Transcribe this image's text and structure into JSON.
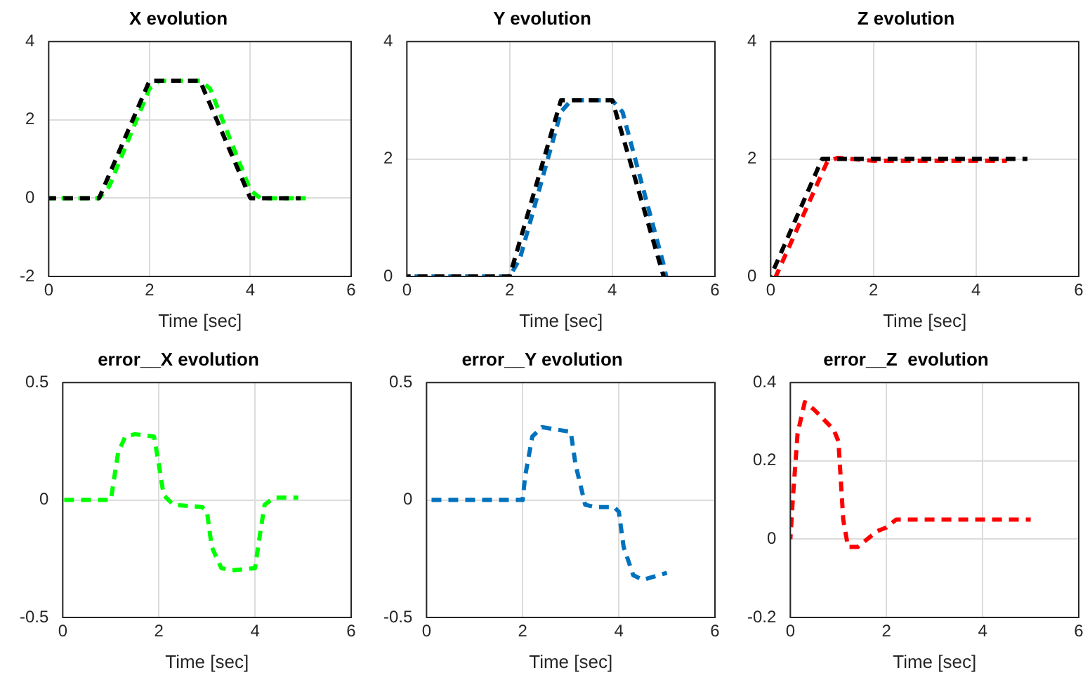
{
  "chart_data": [
    {
      "type": "line",
      "title": "X evolution",
      "xlabel": "Time [sec]",
      "xlim": [
        0,
        6
      ],
      "xticks": [
        0,
        2,
        4,
        6
      ],
      "ylim": [
        -2,
        4
      ],
      "yticks": [
        -2,
        0,
        2,
        4
      ],
      "grid": true,
      "legend": false,
      "marker": "none",
      "line_style": "dashed",
      "series": [
        {
          "color": "#00ff00",
          "x": [
            0,
            1,
            1.2,
            2,
            2.2,
            3,
            3.2,
            4,
            4.2,
            5.1
          ],
          "values": [
            0,
            0,
            0.3,
            2.8,
            3,
            3,
            2.8,
            0.2,
            0,
            0
          ]
        },
        {
          "color": "#000000",
          "x": [
            0,
            1,
            2,
            3,
            4,
            5
          ],
          "values": [
            0,
            0,
            3,
            3,
            0,
            0
          ]
        }
      ]
    },
    {
      "type": "line",
      "title": "Y evolution",
      "xlabel": "Time [sec]",
      "xlim": [
        0,
        6
      ],
      "xticks": [
        0,
        2,
        4,
        6
      ],
      "ylim": [
        0,
        4
      ],
      "yticks": [
        0,
        2,
        4
      ],
      "grid": true,
      "legend": false,
      "marker": "none",
      "line_style": "dashed",
      "series": [
        {
          "color": "#0072bd",
          "x": [
            0,
            2,
            2.2,
            3,
            3.2,
            4,
            4.2,
            5,
            5.05
          ],
          "values": [
            0,
            0,
            0.3,
            2.8,
            3,
            3,
            2.8,
            0.2,
            0
          ]
        },
        {
          "color": "#000000",
          "x": [
            0,
            2,
            3,
            4,
            5
          ],
          "values": [
            0,
            0,
            3,
            3,
            0
          ]
        }
      ]
    },
    {
      "type": "line",
      "title": "Z evolution",
      "xlabel": "Time [sec]",
      "xlim": [
        0,
        6
      ],
      "xticks": [
        0,
        2,
        4,
        6
      ],
      "ylim": [
        0,
        4
      ],
      "yticks": [
        0,
        2,
        4
      ],
      "grid": true,
      "legend": false,
      "marker": "none",
      "line_style": "dashed",
      "series": [
        {
          "color": "#ff0000",
          "x": [
            0.1,
            1.1,
            1.3,
            2,
            4.6
          ],
          "values": [
            0,
            1.95,
            2.02,
            1.97,
            1.97
          ]
        },
        {
          "color": "#000000",
          "x": [
            0,
            1,
            5
          ],
          "values": [
            0,
            2,
            2
          ]
        }
      ]
    },
    {
      "type": "line",
      "title": "error__X evolution",
      "xlabel": "Time [sec]",
      "xlim": [
        0,
        6
      ],
      "xticks": [
        0,
        2,
        4,
        6
      ],
      "ylim": [
        -0.5,
        0.5
      ],
      "yticks": [
        -0.5,
        0,
        0.5
      ],
      "grid": true,
      "legend": false,
      "marker": "none",
      "line_style": "dashed",
      "series": [
        {
          "color": "#00ff00",
          "x": [
            0,
            1,
            1.15,
            1.3,
            1.5,
            1.9,
            2,
            2.1,
            2.3,
            2.9,
            3,
            3.1,
            3.3,
            3.5,
            4,
            4.1,
            4.2,
            4.4,
            4.9
          ],
          "values": [
            0,
            0,
            0.2,
            0.27,
            0.28,
            0.27,
            0.15,
            0.02,
            -0.02,
            -0.03,
            -0.05,
            -0.2,
            -0.29,
            -0.3,
            -0.29,
            -0.15,
            -0.02,
            0.01,
            0.01
          ]
        }
      ]
    },
    {
      "type": "line",
      "title": "error__Y evolution",
      "xlabel": "Time [sec]",
      "xlim": [
        0,
        6
      ],
      "xticks": [
        0,
        2,
        4,
        6
      ],
      "ylim": [
        -0.5,
        0.5
      ],
      "yticks": [
        -0.5,
        0,
        0.5
      ],
      "grid": true,
      "legend": false,
      "marker": "none",
      "line_style": "dashed",
      "series": [
        {
          "color": "#0072bd",
          "x": [
            0,
            2,
            2.05,
            2.2,
            2.4,
            3,
            3.1,
            3.3,
            3.5,
            3.9,
            4,
            4.1,
            4.3,
            4.5,
            5
          ],
          "values": [
            0,
            0,
            0.1,
            0.27,
            0.31,
            0.29,
            0.15,
            -0.02,
            -0.03,
            -0.03,
            -0.05,
            -0.2,
            -0.32,
            -0.34,
            -0.31
          ]
        }
      ]
    },
    {
      "type": "line",
      "title": "error__Z  evolution",
      "xlabel": "Time [sec]",
      "xlim": [
        0,
        6
      ],
      "xticks": [
        0,
        2,
        4,
        6
      ],
      "ylim": [
        -0.2,
        0.4
      ],
      "yticks": [
        -0.2,
        0,
        0.2,
        0.4
      ],
      "grid": true,
      "legend": false,
      "marker": "none",
      "line_style": "dashed",
      "series": [
        {
          "color": "#ff0000",
          "x": [
            0,
            0.05,
            0.15,
            0.3,
            0.5,
            0.9,
            1,
            1.1,
            1.2,
            1.4,
            1.8,
            2,
            2.2,
            5
          ],
          "values": [
            0,
            0.1,
            0.27,
            0.35,
            0.33,
            0.28,
            0.25,
            0.05,
            -0.02,
            -0.02,
            0.02,
            0.03,
            0.05,
            0.05
          ]
        }
      ]
    }
  ]
}
